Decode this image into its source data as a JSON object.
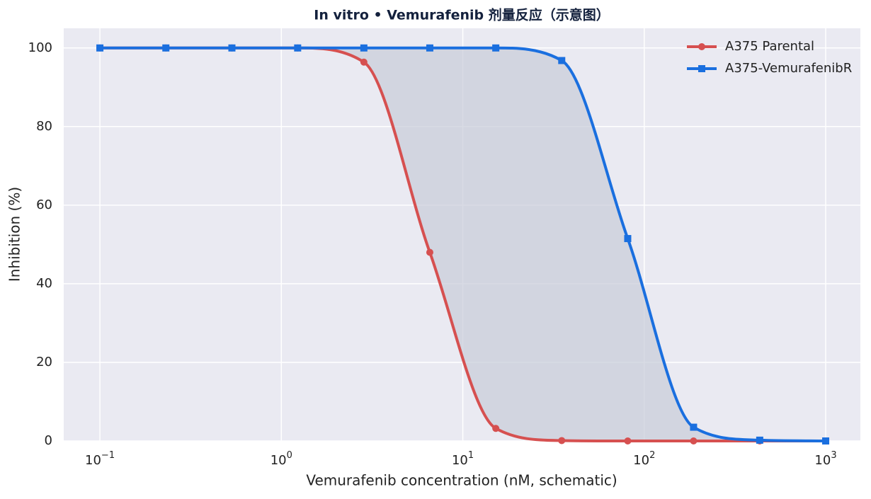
{
  "chart_data": {
    "type": "line",
    "title": "In vitro  •  Vemurafenib 剂量反应（示意图）",
    "x_label": "Vemurafenib concentration (nM, schematic)",
    "y_label": "Inhibition (%)",
    "x": [
      0.1,
      0.231,
      0.534,
      1.23,
      2.85,
      6.58,
      15.2,
      35.1,
      81.1,
      187,
      433,
      1000
    ],
    "series": [
      {
        "name": "A375 Parental",
        "color": "#d65050",
        "marker": "circle",
        "values": [
          100,
          100,
          100,
          100,
          96.4,
          48,
          3.2,
          0.1,
          0,
          0,
          0,
          0
        ]
      },
      {
        "name": "A375-VemurafenibR",
        "color": "#1a6fdf",
        "marker": "square",
        "values": [
          100,
          100,
          100,
          100,
          100,
          100,
          100,
          96.8,
          51.5,
          3.5,
          0.2,
          0
        ]
      }
    ],
    "xscale": "log",
    "xlim": [
      0.0632,
      1553
    ],
    "ylim": [
      0,
      105
    ],
    "xticks": [
      {
        "value": 0.1,
        "label": "10",
        "exponent": "−1"
      },
      {
        "value": 1,
        "label": "10",
        "exponent": "0"
      },
      {
        "value": 10,
        "label": "10",
        "exponent": "1"
      },
      {
        "value": 100,
        "label": "10",
        "exponent": "2"
      },
      {
        "value": 1000,
        "label": "10",
        "exponent": "3"
      }
    ],
    "yticks": [
      0,
      20,
      40,
      60,
      80,
      100
    ],
    "grid": true,
    "legend": "upper right",
    "fill_between": "#c8ccd8"
  }
}
